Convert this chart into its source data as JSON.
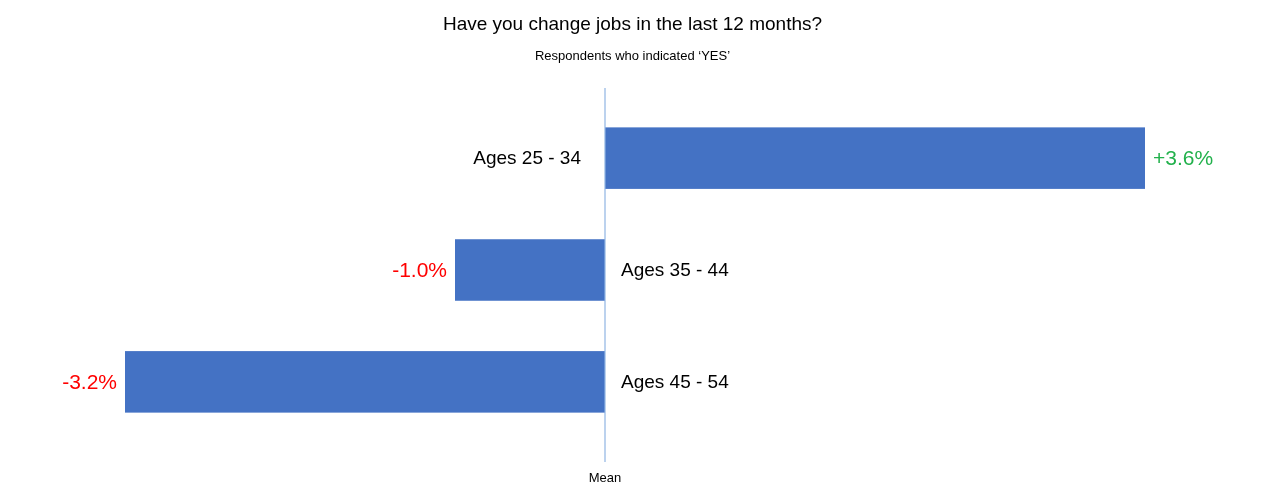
{
  "chart_data": {
    "type": "bar",
    "orientation": "horizontal",
    "title": "Have you change jobs in the last 12 months?",
    "subtitle": "Respondents who indicated ‘YES’",
    "categories": [
      "Ages 25 - 34",
      "Ages 35 - 44",
      "Ages 45 - 54"
    ],
    "values": [
      3.6,
      -1.0,
      -3.2
    ],
    "value_labels": [
      "+3.6%",
      "-1.0%",
      "-3.2%"
    ],
    "color": "#4472c4",
    "tick_labels": false,
    "annotations": [
      "Mean"
    ]
  }
}
